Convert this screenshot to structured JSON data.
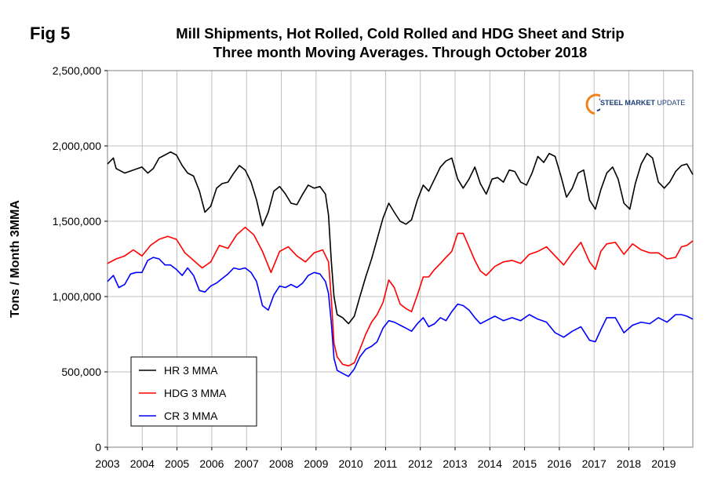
{
  "fig_label": "Fig 5",
  "logo": {
    "bold": "STEEL MARKET",
    "light": "UPDATE"
  },
  "colors": {
    "hr": "#000000",
    "hdg": "#ff0000",
    "cr": "#0000ff",
    "grid": "#c0c0c0",
    "logo_orange": "#f0831e"
  },
  "chart_data": {
    "type": "line",
    "title": "Mill Shipments, Hot Rolled, Cold Rolled and HDG Sheet and Strip",
    "subtitle": "Three month Moving Averages. Through October 2018",
    "xlabel": "",
    "ylabel": "Tons / Month 3MMA",
    "xlim": [
      2003,
      2020
    ],
    "ylim": [
      0,
      2500000
    ],
    "x_ticks": [
      2003,
      2004,
      2005,
      2006,
      2007,
      2008,
      2009,
      2010,
      2011,
      2012,
      2013,
      2014,
      2015,
      2016,
      2017,
      2018,
      2019
    ],
    "y_ticks": [
      0,
      500000,
      1000000,
      1500000,
      2000000,
      2500000
    ],
    "y_tick_labels": [
      "0",
      "500,000",
      "1,000,000",
      "1,500,000",
      "2,000,000",
      "2,500,000"
    ],
    "grid": true,
    "legend_position": "bottom-left",
    "series": [
      {
        "name": "HR 3 MMA",
        "color": "#000000",
        "points": [
          [
            2003.0,
            1880000
          ],
          [
            2003.17,
            1920000
          ],
          [
            2003.25,
            1850000
          ],
          [
            2003.5,
            1820000
          ],
          [
            2003.75,
            1840000
          ],
          [
            2004.0,
            1860000
          ],
          [
            2004.17,
            1820000
          ],
          [
            2004.33,
            1850000
          ],
          [
            2004.5,
            1920000
          ],
          [
            2004.67,
            1940000
          ],
          [
            2004.83,
            1960000
          ],
          [
            2005.0,
            1940000
          ],
          [
            2005.17,
            1870000
          ],
          [
            2005.33,
            1820000
          ],
          [
            2005.5,
            1800000
          ],
          [
            2005.67,
            1700000
          ],
          [
            2005.83,
            1560000
          ],
          [
            2006.0,
            1600000
          ],
          [
            2006.17,
            1720000
          ],
          [
            2006.33,
            1750000
          ],
          [
            2006.5,
            1760000
          ],
          [
            2006.67,
            1820000
          ],
          [
            2006.83,
            1870000
          ],
          [
            2007.0,
            1840000
          ],
          [
            2007.17,
            1760000
          ],
          [
            2007.33,
            1640000
          ],
          [
            2007.5,
            1470000
          ],
          [
            2007.67,
            1560000
          ],
          [
            2007.83,
            1700000
          ],
          [
            2008.0,
            1730000
          ],
          [
            2008.17,
            1680000
          ],
          [
            2008.33,
            1620000
          ],
          [
            2008.5,
            1610000
          ],
          [
            2008.67,
            1680000
          ],
          [
            2008.83,
            1740000
          ],
          [
            2009.0,
            1720000
          ],
          [
            2009.17,
            1730000
          ],
          [
            2009.33,
            1680000
          ],
          [
            2009.42,
            1540000
          ],
          [
            2009.5,
            1240000
          ],
          [
            2009.58,
            1000000
          ],
          [
            2009.67,
            880000
          ],
          [
            2009.83,
            860000
          ],
          [
            2010.0,
            820000
          ],
          [
            2010.17,
            870000
          ],
          [
            2010.33,
            1000000
          ],
          [
            2010.5,
            1130000
          ],
          [
            2010.67,
            1250000
          ],
          [
            2010.83,
            1380000
          ],
          [
            2011.0,
            1520000
          ],
          [
            2011.17,
            1620000
          ],
          [
            2011.33,
            1560000
          ],
          [
            2011.5,
            1500000
          ],
          [
            2011.67,
            1480000
          ],
          [
            2011.83,
            1510000
          ],
          [
            2012.0,
            1640000
          ],
          [
            2012.17,
            1740000
          ],
          [
            2012.33,
            1700000
          ],
          [
            2012.5,
            1780000
          ],
          [
            2012.67,
            1860000
          ],
          [
            2012.83,
            1900000
          ],
          [
            2013.0,
            1920000
          ],
          [
            2013.17,
            1780000
          ],
          [
            2013.33,
            1720000
          ],
          [
            2013.5,
            1780000
          ],
          [
            2013.67,
            1860000
          ],
          [
            2013.83,
            1750000
          ],
          [
            2014.0,
            1680000
          ],
          [
            2014.17,
            1780000
          ],
          [
            2014.33,
            1790000
          ],
          [
            2014.5,
            1760000
          ],
          [
            2014.67,
            1840000
          ],
          [
            2014.83,
            1830000
          ],
          [
            2015.0,
            1760000
          ],
          [
            2015.17,
            1740000
          ],
          [
            2015.33,
            1820000
          ],
          [
            2015.5,
            1930000
          ],
          [
            2015.67,
            1890000
          ],
          [
            2015.83,
            1950000
          ],
          [
            2016.0,
            1930000
          ],
          [
            2016.17,
            1800000
          ],
          [
            2016.33,
            1660000
          ],
          [
            2016.5,
            1720000
          ],
          [
            2016.67,
            1820000
          ],
          [
            2016.83,
            1840000
          ],
          [
            2017.0,
            1640000
          ],
          [
            2017.17,
            1580000
          ],
          [
            2017.33,
            1710000
          ],
          [
            2017.5,
            1820000
          ],
          [
            2017.67,
            1860000
          ],
          [
            2017.83,
            1780000
          ],
          [
            2018.0,
            1620000
          ],
          [
            2018.17,
            1580000
          ],
          [
            2018.33,
            1750000
          ],
          [
            2018.5,
            1880000
          ],
          [
            2018.67,
            1950000
          ],
          [
            2018.83,
            1920000
          ],
          [
            2019.0,
            1760000
          ],
          [
            2019.17,
            1720000
          ],
          [
            2019.33,
            1760000
          ],
          [
            2019.5,
            1830000
          ],
          [
            2019.67,
            1870000
          ],
          [
            2019.83,
            1880000
          ],
          [
            2020.0,
            1810000
          ]
        ]
      },
      {
        "name": "HDG 3 MMA",
        "color": "#ff0000",
        "points": [
          [
            2003.0,
            1220000
          ],
          [
            2003.25,
            1250000
          ],
          [
            2003.5,
            1270000
          ],
          [
            2003.75,
            1310000
          ],
          [
            2004.0,
            1270000
          ],
          [
            2004.25,
            1340000
          ],
          [
            2004.5,
            1380000
          ],
          [
            2004.75,
            1400000
          ],
          [
            2005.0,
            1380000
          ],
          [
            2005.25,
            1290000
          ],
          [
            2005.5,
            1240000
          ],
          [
            2005.75,
            1190000
          ],
          [
            2006.0,
            1230000
          ],
          [
            2006.25,
            1340000
          ],
          [
            2006.5,
            1320000
          ],
          [
            2006.75,
            1410000
          ],
          [
            2007.0,
            1460000
          ],
          [
            2007.25,
            1410000
          ],
          [
            2007.5,
            1300000
          ],
          [
            2007.75,
            1160000
          ],
          [
            2008.0,
            1300000
          ],
          [
            2008.25,
            1330000
          ],
          [
            2008.5,
            1270000
          ],
          [
            2008.75,
            1230000
          ],
          [
            2009.0,
            1290000
          ],
          [
            2009.25,
            1310000
          ],
          [
            2009.42,
            1230000
          ],
          [
            2009.5,
            990000
          ],
          [
            2009.58,
            690000
          ],
          [
            2009.67,
            600000
          ],
          [
            2009.83,
            550000
          ],
          [
            2010.0,
            540000
          ],
          [
            2010.17,
            560000
          ],
          [
            2010.33,
            650000
          ],
          [
            2010.5,
            750000
          ],
          [
            2010.67,
            830000
          ],
          [
            2010.83,
            880000
          ],
          [
            2011.0,
            960000
          ],
          [
            2011.17,
            1110000
          ],
          [
            2011.33,
            1060000
          ],
          [
            2011.5,
            950000
          ],
          [
            2011.67,
            920000
          ],
          [
            2011.83,
            900000
          ],
          [
            2012.0,
            1010000
          ],
          [
            2012.17,
            1130000
          ],
          [
            2012.33,
            1130000
          ],
          [
            2012.5,
            1180000
          ],
          [
            2012.67,
            1220000
          ],
          [
            2012.83,
            1260000
          ],
          [
            2013.0,
            1300000
          ],
          [
            2013.17,
            1420000
          ],
          [
            2013.33,
            1420000
          ],
          [
            2013.5,
            1330000
          ],
          [
            2013.67,
            1240000
          ],
          [
            2013.83,
            1170000
          ],
          [
            2014.0,
            1140000
          ],
          [
            2014.25,
            1200000
          ],
          [
            2014.5,
            1230000
          ],
          [
            2014.75,
            1240000
          ],
          [
            2015.0,
            1220000
          ],
          [
            2015.25,
            1280000
          ],
          [
            2015.5,
            1300000
          ],
          [
            2015.75,
            1330000
          ],
          [
            2016.0,
            1270000
          ],
          [
            2016.25,
            1210000
          ],
          [
            2016.5,
            1290000
          ],
          [
            2016.75,
            1360000
          ],
          [
            2017.0,
            1230000
          ],
          [
            2017.17,
            1180000
          ],
          [
            2017.33,
            1300000
          ],
          [
            2017.5,
            1350000
          ],
          [
            2017.75,
            1360000
          ],
          [
            2018.0,
            1280000
          ],
          [
            2018.25,
            1350000
          ],
          [
            2018.5,
            1310000
          ],
          [
            2018.75,
            1290000
          ],
          [
            2019.0,
            1290000
          ],
          [
            2019.25,
            1250000
          ],
          [
            2019.5,
            1260000
          ],
          [
            2019.67,
            1330000
          ],
          [
            2019.83,
            1340000
          ],
          [
            2020.0,
            1370000
          ]
        ]
      },
      {
        "name": "CR 3 MMA",
        "color": "#0000ff",
        "points": [
          [
            2003.0,
            1100000
          ],
          [
            2003.17,
            1140000
          ],
          [
            2003.33,
            1060000
          ],
          [
            2003.5,
            1080000
          ],
          [
            2003.67,
            1150000
          ],
          [
            2003.83,
            1160000
          ],
          [
            2004.0,
            1160000
          ],
          [
            2004.17,
            1240000
          ],
          [
            2004.33,
            1260000
          ],
          [
            2004.5,
            1250000
          ],
          [
            2004.67,
            1210000
          ],
          [
            2004.83,
            1210000
          ],
          [
            2005.0,
            1180000
          ],
          [
            2005.17,
            1140000
          ],
          [
            2005.33,
            1190000
          ],
          [
            2005.5,
            1140000
          ],
          [
            2005.67,
            1040000
          ],
          [
            2005.83,
            1030000
          ],
          [
            2006.0,
            1070000
          ],
          [
            2006.17,
            1090000
          ],
          [
            2006.33,
            1120000
          ],
          [
            2006.5,
            1150000
          ],
          [
            2006.67,
            1190000
          ],
          [
            2006.83,
            1180000
          ],
          [
            2007.0,
            1190000
          ],
          [
            2007.17,
            1160000
          ],
          [
            2007.33,
            1100000
          ],
          [
            2007.5,
            940000
          ],
          [
            2007.67,
            910000
          ],
          [
            2007.83,
            1010000
          ],
          [
            2008.0,
            1070000
          ],
          [
            2008.17,
            1060000
          ],
          [
            2008.33,
            1080000
          ],
          [
            2008.5,
            1060000
          ],
          [
            2008.67,
            1090000
          ],
          [
            2008.83,
            1140000
          ],
          [
            2009.0,
            1160000
          ],
          [
            2009.17,
            1150000
          ],
          [
            2009.33,
            1100000
          ],
          [
            2009.42,
            1020000
          ],
          [
            2009.5,
            830000
          ],
          [
            2009.58,
            590000
          ],
          [
            2009.67,
            510000
          ],
          [
            2009.83,
            490000
          ],
          [
            2010.0,
            470000
          ],
          [
            2010.17,
            520000
          ],
          [
            2010.33,
            600000
          ],
          [
            2010.5,
            650000
          ],
          [
            2010.67,
            670000
          ],
          [
            2010.83,
            700000
          ],
          [
            2011.0,
            790000
          ],
          [
            2011.17,
            840000
          ],
          [
            2011.33,
            830000
          ],
          [
            2011.5,
            810000
          ],
          [
            2011.67,
            790000
          ],
          [
            2011.83,
            770000
          ],
          [
            2012.0,
            820000
          ],
          [
            2012.17,
            860000
          ],
          [
            2012.33,
            800000
          ],
          [
            2012.5,
            820000
          ],
          [
            2012.67,
            860000
          ],
          [
            2012.83,
            840000
          ],
          [
            2013.0,
            900000
          ],
          [
            2013.17,
            950000
          ],
          [
            2013.33,
            940000
          ],
          [
            2013.5,
            910000
          ],
          [
            2013.67,
            860000
          ],
          [
            2013.83,
            820000
          ],
          [
            2014.0,
            840000
          ],
          [
            2014.25,
            870000
          ],
          [
            2014.5,
            840000
          ],
          [
            2014.75,
            860000
          ],
          [
            2015.0,
            840000
          ],
          [
            2015.25,
            880000
          ],
          [
            2015.5,
            850000
          ],
          [
            2015.75,
            830000
          ],
          [
            2016.0,
            760000
          ],
          [
            2016.25,
            730000
          ],
          [
            2016.5,
            770000
          ],
          [
            2016.75,
            800000
          ],
          [
            2017.0,
            710000
          ],
          [
            2017.17,
            700000
          ],
          [
            2017.33,
            780000
          ],
          [
            2017.5,
            860000
          ],
          [
            2017.75,
            860000
          ],
          [
            2018.0,
            760000
          ],
          [
            2018.25,
            810000
          ],
          [
            2018.5,
            830000
          ],
          [
            2018.75,
            820000
          ],
          [
            2019.0,
            860000
          ],
          [
            2019.25,
            830000
          ],
          [
            2019.5,
            880000
          ],
          [
            2019.67,
            880000
          ],
          [
            2019.83,
            870000
          ],
          [
            2020.0,
            850000
          ]
        ]
      }
    ]
  }
}
